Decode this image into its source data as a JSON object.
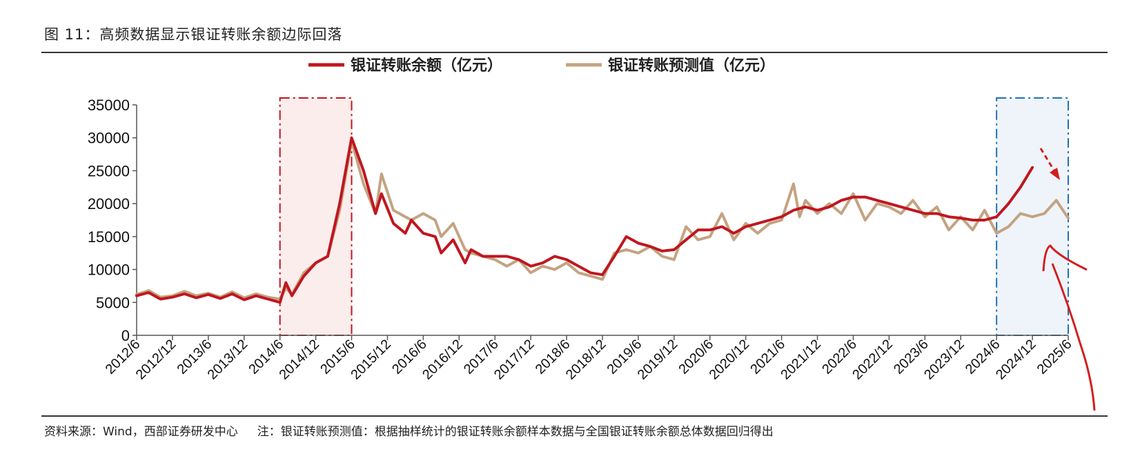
{
  "title": "图 11：高频数据显示银证转账余额边际回落",
  "footer": {
    "source": "资料来源：Wind，西部证券研发中心",
    "note": "注：银证转账预测值：根据抽样统计的银证转账余额样本数据与全国银证转账余额总体数据回归得出"
  },
  "colors": {
    "series_actual": "#C0161F",
    "series_forecast": "#C4A381",
    "highlight_2015_border": "#C0161F",
    "highlight_2015_fill": "#FBEDEC",
    "highlight_2025_border": "#1F72B8",
    "highlight_2025_fill": "#EEF4FA",
    "annotation": "#D41E1E"
  },
  "chart_data": {
    "type": "line",
    "title": "",
    "xlabel": "",
    "ylabel": "",
    "ylim": [
      0,
      35000
    ],
    "yticks": [
      "0",
      "5000",
      "10000",
      "15000",
      "20000",
      "25000",
      "30000",
      "35000"
    ],
    "xticks": [
      "2012/6",
      "2012/12",
      "2013/6",
      "2013/12",
      "2014/6",
      "2014/12",
      "2015/6",
      "2015/12",
      "2016/6",
      "2016/12",
      "2017/6",
      "2017/12",
      "2018/6",
      "2018/12",
      "2019/6",
      "2019/12",
      "2020/6",
      "2020/12",
      "2021/6",
      "2021/12",
      "2022/6",
      "2022/12",
      "2023/6",
      "2023/12",
      "2024/6",
      "2024/12",
      "2025/6"
    ],
    "x_range": [
      "2012/6",
      "2025/6"
    ],
    "legend_position": "top-center",
    "grid": false,
    "highlight_regions": [
      {
        "from": "2014/6",
        "to": "2015/6"
      },
      {
        "from": "2024/6",
        "to": "2025/6"
      }
    ],
    "series": [
      {
        "name": "银证转账余额（亿元）",
        "color": "#C0161F",
        "points": [
          [
            "2012/6",
            6000
          ],
          [
            "2012/8",
            6500
          ],
          [
            "2012/10",
            5500
          ],
          [
            "2012/12",
            5800
          ],
          [
            "2013/2",
            6300
          ],
          [
            "2013/4",
            5700
          ],
          [
            "2013/6",
            6200
          ],
          [
            "2013/8",
            5600
          ],
          [
            "2013/10",
            6300
          ],
          [
            "2013/12",
            5400
          ],
          [
            "2014/2",
            6000
          ],
          [
            "2014/4",
            5500
          ],
          [
            "2014/6",
            5000
          ],
          [
            "2014/7",
            8000
          ],
          [
            "2014/8",
            6000
          ],
          [
            "2014/10",
            9000
          ],
          [
            "2014/12",
            11000
          ],
          [
            "2015/2",
            12000
          ],
          [
            "2015/4",
            20000
          ],
          [
            "2015/6",
            30000
          ],
          [
            "2015/8",
            25000
          ],
          [
            "2015/10",
            18500
          ],
          [
            "2015/11",
            21500
          ],
          [
            "2016/1",
            17000
          ],
          [
            "2016/3",
            15500
          ],
          [
            "2016/4",
            17500
          ],
          [
            "2016/6",
            15500
          ],
          [
            "2016/8",
            15000
          ],
          [
            "2016/9",
            12500
          ],
          [
            "2016/11",
            14500
          ],
          [
            "2017/1",
            11000
          ],
          [
            "2017/2",
            13000
          ],
          [
            "2017/4",
            12000
          ],
          [
            "2017/6",
            12000
          ],
          [
            "2017/8",
            12000
          ],
          [
            "2017/10",
            11500
          ],
          [
            "2017/12",
            10500
          ],
          [
            "2018/2",
            11000
          ],
          [
            "2018/4",
            12000
          ],
          [
            "2018/6",
            11500
          ],
          [
            "2018/8",
            10500
          ],
          [
            "2018/10",
            9500
          ],
          [
            "2018/12",
            9200
          ],
          [
            "2019/2",
            12000
          ],
          [
            "2019/4",
            15000
          ],
          [
            "2019/6",
            14000
          ],
          [
            "2019/8",
            13500
          ],
          [
            "2019/10",
            12800
          ],
          [
            "2019/12",
            13000
          ],
          [
            "2020/2",
            14500
          ],
          [
            "2020/4",
            16000
          ],
          [
            "2020/6",
            16000
          ],
          [
            "2020/8",
            16500
          ],
          [
            "2020/10",
            15500
          ],
          [
            "2020/12",
            16500
          ],
          [
            "2021/2",
            17000
          ],
          [
            "2021/4",
            17500
          ],
          [
            "2021/6",
            18000
          ],
          [
            "2021/8",
            19000
          ],
          [
            "2021/10",
            19500
          ],
          [
            "2021/12",
            19000
          ],
          [
            "2022/2",
            19500
          ],
          [
            "2022/4",
            20500
          ],
          [
            "2022/6",
            21000
          ],
          [
            "2022/8",
            21000
          ],
          [
            "2022/10",
            20500
          ],
          [
            "2022/12",
            20000
          ],
          [
            "2023/2",
            19500
          ],
          [
            "2023/4",
            19000
          ],
          [
            "2023/6",
            18500
          ],
          [
            "2023/8",
            18500
          ],
          [
            "2023/10",
            18000
          ],
          [
            "2023/12",
            17800
          ],
          [
            "2024/2",
            17500
          ],
          [
            "2024/4",
            17500
          ],
          [
            "2024/6",
            18000
          ],
          [
            "2024/8",
            20000
          ],
          [
            "2024/10",
            22500
          ],
          [
            "2024/12",
            25500
          ]
        ]
      },
      {
        "name": "银证转账预测值（亿元）",
        "color": "#C4A381",
        "points": [
          [
            "2012/6",
            6200
          ],
          [
            "2012/8",
            6800
          ],
          [
            "2012/10",
            5800
          ],
          [
            "2012/12",
            6000
          ],
          [
            "2013/2",
            6700
          ],
          [
            "2013/4",
            6000
          ],
          [
            "2013/6",
            6400
          ],
          [
            "2013/8",
            5800
          ],
          [
            "2013/10",
            6600
          ],
          [
            "2013/12",
            5700
          ],
          [
            "2014/2",
            6300
          ],
          [
            "2014/4",
            5800
          ],
          [
            "2014/6",
            5500
          ],
          [
            "2014/7",
            7200
          ],
          [
            "2014/8",
            6200
          ],
          [
            "2014/10",
            9500
          ],
          [
            "2014/12",
            11000
          ],
          [
            "2015/2",
            12000
          ],
          [
            "2015/4",
            19000
          ],
          [
            "2015/6",
            29500
          ],
          [
            "2015/8",
            23000
          ],
          [
            "2015/10",
            18500
          ],
          [
            "2015/11",
            24500
          ],
          [
            "2016/1",
            19000
          ],
          [
            "2016/3",
            18000
          ],
          [
            "2016/4",
            17500
          ],
          [
            "2016/6",
            18500
          ],
          [
            "2016/8",
            17500
          ],
          [
            "2016/9",
            15000
          ],
          [
            "2016/11",
            17000
          ],
          [
            "2017/1",
            13000
          ],
          [
            "2017/2",
            12500
          ],
          [
            "2017/4",
            12000
          ],
          [
            "2017/6",
            11500
          ],
          [
            "2017/8",
            10500
          ],
          [
            "2017/10",
            11500
          ],
          [
            "2017/12",
            9500
          ],
          [
            "2018/2",
            10500
          ],
          [
            "2018/4",
            10000
          ],
          [
            "2018/6",
            11000
          ],
          [
            "2018/8",
            9500
          ],
          [
            "2018/10",
            9000
          ],
          [
            "2018/12",
            8500
          ],
          [
            "2019/2",
            12500
          ],
          [
            "2019/4",
            13000
          ],
          [
            "2019/6",
            12500
          ],
          [
            "2019/8",
            13500
          ],
          [
            "2019/10",
            12000
          ],
          [
            "2019/12",
            11500
          ],
          [
            "2020/2",
            16500
          ],
          [
            "2020/4",
            14500
          ],
          [
            "2020/6",
            15000
          ],
          [
            "2020/8",
            18500
          ],
          [
            "2020/10",
            14500
          ],
          [
            "2020/12",
            17000
          ],
          [
            "2021/2",
            15500
          ],
          [
            "2021/4",
            17000
          ],
          [
            "2021/6",
            17500
          ],
          [
            "2021/8",
            23000
          ],
          [
            "2021/9",
            18000
          ],
          [
            "2021/10",
            20500
          ],
          [
            "2021/12",
            18500
          ],
          [
            "2022/2",
            20000
          ],
          [
            "2022/4",
            18500
          ],
          [
            "2022/6",
            21500
          ],
          [
            "2022/8",
            17500
          ],
          [
            "2022/10",
            20000
          ],
          [
            "2022/12",
            19500
          ],
          [
            "2023/2",
            18500
          ],
          [
            "2023/4",
            20500
          ],
          [
            "2023/6",
            18000
          ],
          [
            "2023/8",
            19500
          ],
          [
            "2023/10",
            16000
          ],
          [
            "2023/12",
            18000
          ],
          [
            "2024/2",
            16000
          ],
          [
            "2024/4",
            19000
          ],
          [
            "2024/6",
            15500
          ],
          [
            "2024/8",
            16500
          ],
          [
            "2024/10",
            18500
          ],
          [
            "2024/12",
            18000
          ],
          [
            "2025/2",
            18500
          ],
          [
            "2025/4",
            20500
          ],
          [
            "2025/6",
            17800
          ]
        ]
      }
    ]
  }
}
